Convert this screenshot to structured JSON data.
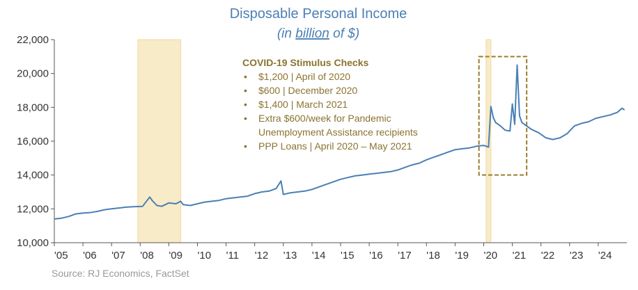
{
  "chart_data": {
    "type": "line",
    "title": "Disposable Personal Income",
    "subtitle_parts": [
      "(in ",
      "billion",
      " of $)"
    ],
    "source": "Source: RJ Economics, FactSet",
    "ylim": [
      10000,
      22000
    ],
    "y_ticks": [
      "10,000",
      "12,000",
      "14,000",
      "16,000",
      "18,000",
      "20,000",
      "22,000"
    ],
    "x_ticks": [
      "'05",
      "'06",
      "'07",
      "'08",
      "'09",
      "'10",
      "'11",
      "'12",
      "'13",
      "'14",
      "'15",
      "'16",
      "'17",
      "'18",
      "'19",
      "'20",
      "'21",
      "'22",
      "'23",
      "'24"
    ],
    "x_range": [
      "2005-01",
      "2024-12"
    ],
    "recessions": [
      {
        "start": "2007-12",
        "end": "2009-06"
      },
      {
        "start": "2020-02",
        "end": "2020-04"
      }
    ],
    "annotation": {
      "title": "COVID-19 Stimulus Checks",
      "items": [
        "$1,200 | April of 2020",
        "$600 | December 2020",
        "$1,400 | March 2021",
        "Extra $600/week for Pandemic",
        "Unemployment Assistance recipients",
        "PPP Loans | April 2020 – May 2021"
      ],
      "bullets": [
        true,
        true,
        true,
        true,
        false,
        true
      ],
      "box_range": {
        "start": "2019-11",
        "end": "2021-07",
        "ymin": 14000,
        "ymax": 21000
      }
    },
    "series": [
      {
        "color": "#4a7fb5",
        "points": [
          [
            "2005-01",
            11400
          ],
          [
            "2005-04",
            11450
          ],
          [
            "2005-07",
            11550
          ],
          [
            "2005-10",
            11700
          ],
          [
            "2006-01",
            11750
          ],
          [
            "2006-04",
            11780
          ],
          [
            "2006-07",
            11850
          ],
          [
            "2006-10",
            11950
          ],
          [
            "2007-01",
            12000
          ],
          [
            "2007-04",
            12050
          ],
          [
            "2007-07",
            12100
          ],
          [
            "2007-10",
            12130
          ],
          [
            "2008-02",
            12150
          ],
          [
            "2008-05",
            12700
          ],
          [
            "2008-06",
            12500
          ],
          [
            "2008-08",
            12200
          ],
          [
            "2008-10",
            12150
          ],
          [
            "2009-01",
            12350
          ],
          [
            "2009-04",
            12300
          ],
          [
            "2009-06",
            12450
          ],
          [
            "2009-07",
            12250
          ],
          [
            "2009-10",
            12200
          ],
          [
            "2010-01",
            12300
          ],
          [
            "2010-04",
            12400
          ],
          [
            "2010-07",
            12450
          ],
          [
            "2010-10",
            12500
          ],
          [
            "2011-01",
            12600
          ],
          [
            "2011-04",
            12650
          ],
          [
            "2011-07",
            12700
          ],
          [
            "2011-10",
            12750
          ],
          [
            "2012-01",
            12900
          ],
          [
            "2012-04",
            13000
          ],
          [
            "2012-07",
            13050
          ],
          [
            "2012-10",
            13200
          ],
          [
            "2012-12",
            13650
          ],
          [
            "2013-01",
            12850
          ],
          [
            "2013-04",
            12950
          ],
          [
            "2013-07",
            13000
          ],
          [
            "2013-10",
            13050
          ],
          [
            "2014-01",
            13150
          ],
          [
            "2014-04",
            13300
          ],
          [
            "2014-07",
            13450
          ],
          [
            "2014-10",
            13600
          ],
          [
            "2015-01",
            13750
          ],
          [
            "2015-04",
            13850
          ],
          [
            "2015-07",
            13950
          ],
          [
            "2015-10",
            14000
          ],
          [
            "2016-01",
            14050
          ],
          [
            "2016-04",
            14100
          ],
          [
            "2016-07",
            14150
          ],
          [
            "2016-10",
            14200
          ],
          [
            "2017-01",
            14300
          ],
          [
            "2017-04",
            14450
          ],
          [
            "2017-07",
            14600
          ],
          [
            "2017-10",
            14700
          ],
          [
            "2018-01",
            14900
          ],
          [
            "2018-04",
            15050
          ],
          [
            "2018-07",
            15200
          ],
          [
            "2018-10",
            15350
          ],
          [
            "2019-01",
            15500
          ],
          [
            "2019-04",
            15550
          ],
          [
            "2019-07",
            15600
          ],
          [
            "2019-10",
            15700
          ],
          [
            "2020-01",
            15750
          ],
          [
            "2020-03",
            15650
          ],
          [
            "2020-04",
            18050
          ],
          [
            "2020-05",
            17400
          ],
          [
            "2020-06",
            17100
          ],
          [
            "2020-08",
            16900
          ],
          [
            "2020-10",
            16650
          ],
          [
            "2020-12",
            16600
          ],
          [
            "2021-01",
            18200
          ],
          [
            "2021-02",
            17000
          ],
          [
            "2021-03",
            20500
          ],
          [
            "2021-04",
            17500
          ],
          [
            "2021-05",
            17100
          ],
          [
            "2021-07",
            16900
          ],
          [
            "2021-09",
            16700
          ],
          [
            "2021-12",
            16500
          ],
          [
            "2022-03",
            16200
          ],
          [
            "2022-06",
            16100
          ],
          [
            "2022-09",
            16200
          ],
          [
            "2022-12",
            16450
          ],
          [
            "2023-03",
            16900
          ],
          [
            "2023-06",
            17050
          ],
          [
            "2023-09",
            17150
          ],
          [
            "2023-12",
            17350
          ],
          [
            "2024-03",
            17450
          ],
          [
            "2024-06",
            17550
          ],
          [
            "2024-09",
            17700
          ],
          [
            "2024-11",
            17950
          ],
          [
            "2024-12",
            17850
          ]
        ]
      }
    ]
  }
}
